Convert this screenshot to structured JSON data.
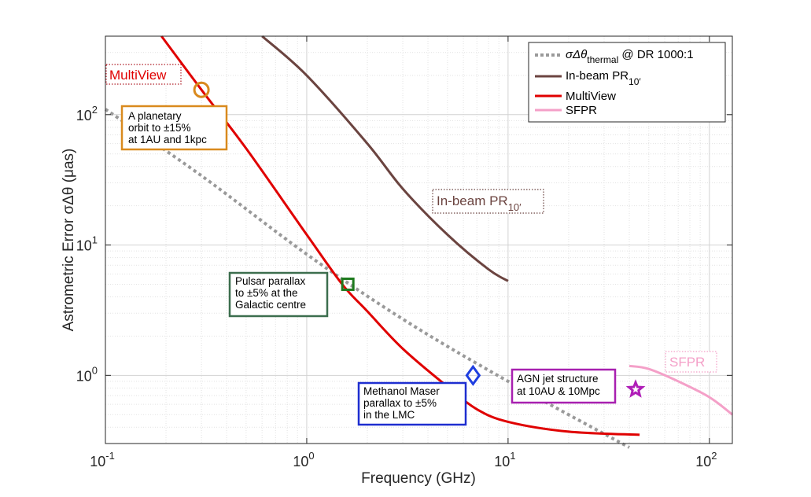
{
  "chart_data": {
    "type": "line",
    "xscale": "log",
    "yscale": "log",
    "xlim": [
      0.1,
      130
    ],
    "ylim": [
      0.3,
      400
    ],
    "grid": true,
    "xlabel": "Frequency (GHz)",
    "ylabel": "Astrometric Error σΔθ (μas)",
    "x_ticks": [
      {
        "value": 0.1,
        "base": "10",
        "exp": "-1"
      },
      {
        "value": 1,
        "base": "10",
        "exp": "0"
      },
      {
        "value": 10,
        "base": "10",
        "exp": "1"
      },
      {
        "value": 100,
        "base": "10",
        "exp": "2"
      }
    ],
    "y_ticks": [
      {
        "value": 1,
        "base": "10",
        "exp": "0"
      },
      {
        "value": 10,
        "base": "10",
        "exp": "1"
      },
      {
        "value": 100,
        "base": "10",
        "exp": "2"
      }
    ],
    "series": [
      {
        "name": "σΔθ thermal @ DR 1000:1",
        "style": "dotted",
        "color": "#9a9a9a",
        "x": [
          0.1,
          0.3,
          1,
          3,
          10,
          40
        ],
        "y": [
          110,
          34,
          8.5,
          2.7,
          0.9,
          0.28
        ]
      },
      {
        "name": "In-beam PR10′",
        "style": "solid",
        "color": "#6b4440",
        "x": [
          0.6,
          1,
          2,
          3,
          5,
          8,
          10
        ],
        "y": [
          400,
          200,
          60,
          27,
          12,
          6.5,
          5.3
        ]
      },
      {
        "name": "MultiView",
        "style": "solid",
        "color": "#e00000",
        "x": [
          0.19,
          0.3,
          0.5,
          1,
          1.5,
          2,
          3,
          5,
          7,
          10,
          20,
          45
        ],
        "y": [
          400,
          155,
          55,
          12,
          5,
          3.1,
          1.6,
          0.82,
          0.55,
          0.44,
          0.37,
          0.35
        ]
      },
      {
        "name": "SFPR",
        "style": "solid",
        "color": "#f4a0c8",
        "x": [
          40,
          50,
          70,
          100,
          130
        ],
        "y": [
          1.18,
          1.12,
          0.9,
          0.68,
          0.5
        ]
      }
    ],
    "legend": {
      "position": "top-right",
      "entries": [
        {
          "label": "σΔθ",
          "sub": "thermal",
          "suffix": " @ DR 1000:1",
          "color": "#9a9a9a",
          "style": "dotted"
        },
        {
          "label": "In-beam PR",
          "sub": "10′",
          "suffix": "",
          "color": "#6b4440",
          "style": "solid"
        },
        {
          "label": "MultiView",
          "sub": "",
          "suffix": "",
          "color": "#e00000",
          "style": "solid"
        },
        {
          "label": "SFPR",
          "sub": "",
          "suffix": "",
          "color": "#f4a0c8",
          "style": "solid"
        }
      ]
    },
    "markers": [
      {
        "name": "planetary-orbit-marker",
        "shape": "circle",
        "x": 0.3,
        "y": 155,
        "color": "#d98a1e"
      },
      {
        "name": "pulsar-parallax-marker",
        "shape": "square",
        "x": 1.6,
        "y": 5.0,
        "color": "#1e7a1e"
      },
      {
        "name": "methanol-maser-marker",
        "shape": "diamond",
        "x": 6.7,
        "y": 1.0,
        "color": "#1e3ee0"
      },
      {
        "name": "agn-jet-marker",
        "shape": "star",
        "x": 43,
        "y": 0.78,
        "color": "#b01eb8"
      }
    ],
    "annotations": [
      {
        "name": "planetary-orbit-annotation",
        "lines": [
          "A planetary",
          "orbit to ±15%",
          "at 1AU and 1kpc"
        ],
        "border": "#d98a1e"
      },
      {
        "name": "pulsar-parallax-annotation",
        "lines": [
          "Pulsar parallax",
          "to ±5% at the",
          "Galactic centre"
        ],
        "border": "#3c6e4e"
      },
      {
        "name": "methanol-maser-annotation",
        "lines": [
          "Methanol Maser",
          "parallax to ±5%",
          "in the LMC"
        ],
        "border": "#1e2ed0"
      },
      {
        "name": "agn-jet-annotation",
        "lines": [
          "AGN jet structure",
          "at 10AU & 10Mpc"
        ],
        "border": "#a820b0"
      }
    ],
    "tags": [
      {
        "name": "multiview-tag",
        "text": "MultiView",
        "sub": "",
        "color": "#e00000"
      },
      {
        "name": "inbeam-tag",
        "text": "In-beam PR",
        "sub": "10′",
        "color": "#6b4440"
      },
      {
        "name": "sfpr-tag",
        "text": "SFPR",
        "sub": "",
        "color": "#f4a0c8"
      }
    ]
  }
}
